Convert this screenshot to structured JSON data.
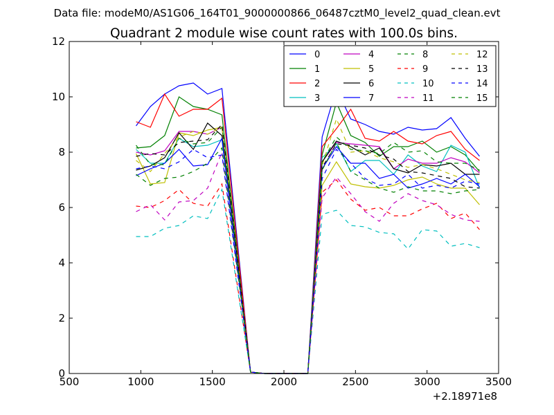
{
  "chart_data": {
    "type": "line",
    "suptitle": "Data file: modeM0/AS1G06_164T01_9000000866_06487cztM0_level2_quad_clean.evt",
    "title": "Quadrant 2 module wise count rates with 100.0s bins.",
    "xlabel": "",
    "ylabel": "",
    "xlim": [
      500,
      3500
    ],
    "ylim": [
      0,
      12
    ],
    "xticks": [
      500,
      1000,
      1500,
      2000,
      2500,
      3000,
      3500
    ],
    "yticks": [
      0,
      2,
      4,
      6,
      8,
      10,
      12
    ],
    "x_offset_label": "+2.18971e8",
    "legend_position": "top-right",
    "x": [
      967,
      1067,
      1167,
      1267,
      1367,
      1467,
      1567,
      1767,
      1867,
      1967,
      2067,
      2167,
      2267,
      2367,
      2467,
      2567,
      2667,
      2767,
      2867,
      2967,
      3067,
      3167,
      3267,
      3367
    ],
    "series": [
      {
        "name": "0",
        "color": "#0000ff",
        "dash": "solid",
        "values": [
          8.95,
          9.65,
          10.1,
          10.4,
          10.5,
          10.1,
          10.3,
          0.05,
          0,
          0,
          0,
          0,
          8.55,
          10.3,
          9.2,
          9.0,
          8.75,
          8.65,
          8.9,
          8.8,
          8.85,
          9.25,
          8.5,
          7.85
        ]
      },
      {
        "name": "1",
        "color": "#008000",
        "dash": "solid",
        "values": [
          8.15,
          8.2,
          8.6,
          10.0,
          9.65,
          9.55,
          9.35,
          0.05,
          0,
          0,
          0,
          0,
          7.9,
          9.8,
          8.6,
          8.35,
          7.85,
          8.2,
          8.2,
          8.4,
          8.0,
          8.2,
          7.9,
          7.3
        ]
      },
      {
        "name": "2",
        "color": "#ff0000",
        "dash": "solid",
        "values": [
          9.1,
          8.9,
          10.1,
          9.3,
          9.55,
          9.55,
          9.95,
          0.05,
          0,
          0,
          0,
          0,
          8.2,
          8.85,
          9.55,
          8.5,
          8.4,
          8.75,
          8.4,
          8.3,
          8.6,
          8.75,
          8.1,
          7.7
        ]
      },
      {
        "name": "3",
        "color": "#00bfbf",
        "dash": "solid",
        "values": [
          8.1,
          7.6,
          7.6,
          8.5,
          8.2,
          8.25,
          8.45,
          0.05,
          0,
          0,
          0,
          0,
          7.8,
          8.3,
          7.3,
          7.7,
          7.7,
          7.2,
          7.9,
          7.5,
          7.3,
          8.25,
          8.0,
          6.7
        ]
      },
      {
        "name": "4",
        "color": "#bf00bf",
        "dash": "solid",
        "values": [
          8.0,
          7.9,
          8.05,
          8.75,
          8.75,
          8.65,
          8.9,
          0.05,
          0,
          0,
          0,
          0,
          7.65,
          8.35,
          8.3,
          8.25,
          8.2,
          7.4,
          7.75,
          7.6,
          7.6,
          7.8,
          7.65,
          7.25
        ]
      },
      {
        "name": "5",
        "color": "#bfbf00",
        "dash": "solid",
        "values": [
          7.95,
          6.85,
          6.9,
          8.7,
          8.6,
          8.8,
          8.9,
          0.05,
          0,
          0,
          0,
          0,
          6.8,
          7.65,
          6.85,
          6.75,
          6.7,
          6.8,
          7.0,
          7.1,
          6.85,
          6.7,
          6.7,
          6.1
        ]
      },
      {
        "name": "6",
        "color": "#000000",
        "dash": "solid",
        "values": [
          7.35,
          7.5,
          7.8,
          8.7,
          8.1,
          9.05,
          8.6,
          0.05,
          0,
          0,
          0,
          0,
          7.65,
          8.4,
          8.2,
          7.9,
          8.15,
          7.4,
          7.25,
          7.55,
          7.5,
          7.6,
          7.2,
          7.2
        ]
      },
      {
        "name": "7",
        "color": "#0000ff",
        "dash": "solid",
        "values": [
          7.15,
          7.4,
          7.6,
          8.1,
          7.5,
          7.55,
          8.5,
          0.05,
          0,
          0,
          0,
          0,
          7.4,
          8.2,
          7.6,
          7.6,
          7.05,
          7.2,
          6.7,
          6.85,
          7.05,
          6.85,
          7.2,
          6.75
        ]
      },
      {
        "name": "8",
        "color": "#008000",
        "dash": "dashed",
        "values": [
          8.25,
          7.55,
          7.55,
          8.5,
          8.3,
          8.35,
          8.9,
          0.05,
          0,
          0,
          0,
          0,
          7.65,
          8.55,
          8.1,
          8.05,
          7.95,
          8.35,
          8.0,
          8.05,
          7.65,
          7.6,
          7.6,
          7.35
        ]
      },
      {
        "name": "9",
        "color": "#ff0000",
        "dash": "dashed",
        "values": [
          6.05,
          6.0,
          6.25,
          6.65,
          6.15,
          6.05,
          6.85,
          0.05,
          0,
          0,
          0,
          0,
          6.55,
          7.0,
          6.3,
          5.9,
          6.0,
          5.7,
          5.7,
          5.95,
          6.15,
          5.6,
          5.8,
          5.2
        ]
      },
      {
        "name": "10",
        "color": "#00bfbf",
        "dash": "dashed",
        "values": [
          4.95,
          4.95,
          5.25,
          5.35,
          5.7,
          5.6,
          6.65,
          0.05,
          0,
          0,
          0,
          0,
          5.75,
          5.9,
          5.35,
          5.3,
          5.1,
          5.05,
          4.5,
          5.2,
          5.15,
          4.6,
          4.7,
          4.55
        ]
      },
      {
        "name": "11",
        "color": "#bf00bf",
        "dash": "dashed",
        "values": [
          5.85,
          6.1,
          5.55,
          6.2,
          6.25,
          6.7,
          8.0,
          0.05,
          0,
          0,
          0,
          0,
          6.35,
          7.1,
          6.5,
          5.85,
          5.5,
          6.15,
          6.5,
          6.25,
          6.1,
          5.75,
          5.55,
          5.5
        ]
      },
      {
        "name": "12",
        "color": "#bfbf00",
        "dash": "dashed",
        "values": [
          7.7,
          7.3,
          7.95,
          8.55,
          8.75,
          8.65,
          8.9,
          0.05,
          0,
          0,
          0,
          0,
          7.5,
          9.2,
          8.0,
          8.05,
          7.8,
          7.65,
          7.45,
          7.55,
          7.4,
          7.2,
          7.0,
          6.9
        ]
      },
      {
        "name": "13",
        "color": "#000000",
        "dash": "dashed",
        "values": [
          7.85,
          7.95,
          7.9,
          8.35,
          8.4,
          8.45,
          9.0,
          0.05,
          0,
          0,
          0,
          0,
          7.45,
          8.3,
          8.25,
          8.15,
          7.9,
          7.75,
          7.3,
          7.25,
          7.15,
          7.05,
          6.75,
          6.7
        ]
      },
      {
        "name": "14",
        "color": "#0000ff",
        "dash": "dashed",
        "values": [
          7.4,
          7.5,
          7.4,
          7.65,
          8.1,
          7.8,
          7.9,
          0.05,
          0,
          0,
          0,
          0,
          7.05,
          8.1,
          7.6,
          7.05,
          6.8,
          6.85,
          7.2,
          6.7,
          6.8,
          6.7,
          6.95,
          6.85
        ]
      },
      {
        "name": "15",
        "color": "#008000",
        "dash": "dashed",
        "values": [
          7.2,
          6.8,
          7.05,
          7.1,
          7.3,
          7.6,
          8.15,
          0.05,
          0,
          0,
          0,
          0,
          7.35,
          8.35,
          7.3,
          7.0,
          6.7,
          6.55,
          6.75,
          6.6,
          6.6,
          6.5,
          6.6,
          6.65
        ]
      }
    ]
  }
}
